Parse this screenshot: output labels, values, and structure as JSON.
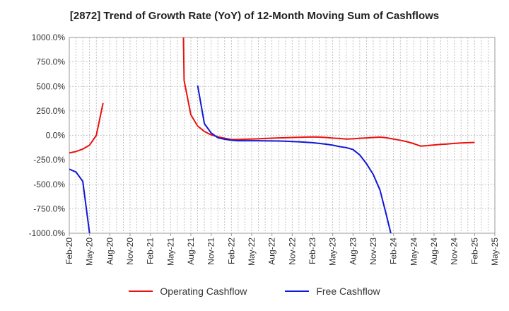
{
  "chart_data": {
    "type": "line",
    "title": "[2872]  Trend of Growth Rate (YoY) of 12-Month Moving Sum of Cashflows",
    "xlabel": "",
    "ylabel": "",
    "ylim": [
      -1000,
      1000
    ],
    "y_ticks": [
      "1000.0%",
      "750.0%",
      "500.0%",
      "250.0%",
      "0.0%",
      "-250.0%",
      "-500.0%",
      "-750.0%",
      "-1000.0%"
    ],
    "y_tick_values": [
      1000,
      750,
      500,
      250,
      0,
      -250,
      -500,
      -750,
      -1000
    ],
    "x_ticks": [
      "Feb-20",
      "May-20",
      "Aug-20",
      "Nov-20",
      "Feb-21",
      "May-21",
      "Aug-21",
      "Nov-21",
      "Feb-22",
      "May-22",
      "Aug-22",
      "Nov-22",
      "Feb-23",
      "May-23",
      "Aug-23",
      "Nov-23",
      "Feb-24",
      "May-24",
      "Aug-24",
      "Nov-24",
      "Feb-25",
      "May-25"
    ],
    "x_range_months": [
      0,
      63
    ],
    "grid": true,
    "legend_position": "bottom",
    "series": [
      {
        "name": "Operating Cashflow",
        "color": "#e8120f",
        "points": [
          [
            0,
            -180
          ],
          [
            1,
            -165
          ],
          [
            2,
            -140
          ],
          [
            3,
            -100
          ],
          [
            4,
            0
          ],
          [
            5,
            330
          ],
          [
            16.9,
            1000
          ],
          [
            17,
            560
          ],
          [
            18,
            210
          ],
          [
            19,
            95
          ],
          [
            20,
            40
          ],
          [
            21,
            5
          ],
          [
            22,
            -15
          ],
          [
            23,
            -30
          ],
          [
            24,
            -42
          ],
          [
            25,
            -42
          ],
          [
            26,
            -40
          ],
          [
            27,
            -38
          ],
          [
            28,
            -35
          ],
          [
            29,
            -32
          ],
          [
            30,
            -29
          ],
          [
            31,
            -26
          ],
          [
            32,
            -24
          ],
          [
            33,
            -22
          ],
          [
            34,
            -20
          ],
          [
            35,
            -18
          ],
          [
            36,
            -16
          ],
          [
            37,
            -18
          ],
          [
            38,
            -22
          ],
          [
            39,
            -28
          ],
          [
            40,
            -32
          ],
          [
            41,
            -38
          ],
          [
            42,
            -35
          ],
          [
            43,
            -30
          ],
          [
            44,
            -26
          ],
          [
            45,
            -22
          ],
          [
            46,
            -18
          ],
          [
            47,
            -25
          ],
          [
            48,
            -38
          ],
          [
            49,
            -50
          ],
          [
            50,
            -65
          ],
          [
            51,
            -85
          ],
          [
            52,
            -110
          ],
          [
            53,
            -105
          ],
          [
            54,
            -98
          ],
          [
            55,
            -92
          ],
          [
            56,
            -88
          ],
          [
            57,
            -82
          ],
          [
            58,
            -78
          ],
          [
            59,
            -75
          ],
          [
            60,
            -72
          ]
        ]
      },
      {
        "name": "Free Cashflow",
        "color": "#1017d6",
        "points": [
          [
            0,
            -345
          ],
          [
            1,
            -375
          ],
          [
            2,
            -470
          ],
          [
            3,
            -1000
          ],
          [
            19,
            510
          ],
          [
            20,
            120
          ],
          [
            21,
            25
          ],
          [
            22,
            -25
          ],
          [
            23,
            -40
          ],
          [
            24,
            -50
          ],
          [
            25,
            -55
          ],
          [
            26,
            -55
          ],
          [
            27,
            -55
          ],
          [
            28,
            -55
          ],
          [
            29,
            -56
          ],
          [
            30,
            -57
          ],
          [
            31,
            -58
          ],
          [
            32,
            -60
          ],
          [
            33,
            -63
          ],
          [
            34,
            -66
          ],
          [
            35,
            -70
          ],
          [
            36,
            -75
          ],
          [
            37,
            -82
          ],
          [
            38,
            -90
          ],
          [
            39,
            -100
          ],
          [
            40,
            -115
          ],
          [
            41,
            -125
          ],
          [
            42,
            -145
          ],
          [
            43,
            -200
          ],
          [
            44,
            -290
          ],
          [
            45,
            -400
          ],
          [
            46,
            -560
          ],
          [
            47,
            -830
          ],
          [
            47.6,
            -1000
          ]
        ]
      }
    ]
  }
}
